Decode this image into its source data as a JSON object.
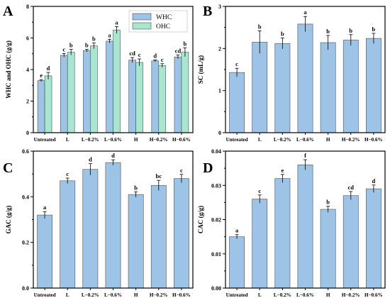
{
  "figure": {
    "colors": {
      "whc": "#9dc3e6",
      "ohc": "#a8e6cf",
      "bar": "#9dc3e6",
      "edge": "#505050"
    },
    "panels": [
      {
        "label": "A"
      },
      {
        "label": "B"
      },
      {
        "label": "C"
      },
      {
        "label": "D"
      }
    ]
  },
  "chart_data": [
    {
      "type": "bar",
      "panel": "A",
      "categories": [
        "Untreated",
        "L",
        "L−0.2%",
        "L−0.6%",
        "H",
        "H−0.2%",
        "H−0.6%"
      ],
      "series": [
        {
          "name": "WHC",
          "values": [
            3.3,
            4.9,
            5.2,
            5.8,
            4.6,
            4.55,
            4.8
          ],
          "errors": [
            0.06,
            0.12,
            0.08,
            0.12,
            0.16,
            0.06,
            0.12
          ],
          "letters": [
            "e",
            "c",
            "b",
            "a",
            "cd",
            "d",
            "cd"
          ]
        },
        {
          "name": "OHC",
          "values": [
            3.6,
            5.1,
            5.5,
            6.5,
            4.45,
            4.25,
            5.1
          ],
          "errors": [
            0.22,
            0.18,
            0.18,
            0.22,
            0.22,
            0.12,
            0.28
          ],
          "letters": [
            "d",
            "b",
            "b",
            "a",
            "c",
            "c",
            "b"
          ]
        }
      ],
      "ylabel": "WHC and OHC (g/g)",
      "ylim": [
        0,
        8
      ],
      "yticks": [
        "0",
        "2",
        "4",
        "6",
        "8"
      ],
      "legend": "top-right"
    },
    {
      "type": "bar",
      "panel": "B",
      "categories": [
        "Untreated",
        "L",
        "L−0.2%",
        "L−0.6%",
        "H",
        "H−0.2%",
        "H−0.6%"
      ],
      "values": [
        1.43,
        2.15,
        2.12,
        2.58,
        2.14,
        2.2,
        2.24
      ],
      "errors": [
        0.1,
        0.27,
        0.13,
        0.18,
        0.17,
        0.13,
        0.12
      ],
      "letters": [
        "c",
        "b",
        "b",
        "a",
        "b",
        "b",
        "b"
      ],
      "ylabel": "SC (mL/g)",
      "ylim": [
        0,
        3
      ],
      "yticks": [
        "0",
        "1",
        "2",
        "3"
      ]
    },
    {
      "type": "bar",
      "panel": "C",
      "categories": [
        "Untreated",
        "L",
        "L−0.2%",
        "L−0.6%",
        "H",
        "H−0.2%",
        "H−0.6%"
      ],
      "values": [
        0.32,
        0.47,
        0.52,
        0.55,
        0.41,
        0.45,
        0.48
      ],
      "errors": [
        0.015,
        0.012,
        0.025,
        0.012,
        0.012,
        0.022,
        0.018
      ],
      "letters": [
        "a",
        "c",
        "d",
        "d",
        "b",
        "bc",
        "c"
      ],
      "ylabel": "GAC (g/g)",
      "ylim": [
        0,
        0.6
      ],
      "yticks": [
        "0.0",
        "0.2",
        "0.4",
        "0.6"
      ]
    },
    {
      "type": "bar",
      "panel": "D",
      "categories": [
        "Untreated",
        "L",
        "L−0.2%",
        "L−0.6%",
        "H",
        "H−0.2%",
        "H−0.6%"
      ],
      "values": [
        0.015,
        0.026,
        0.032,
        0.036,
        0.023,
        0.027,
        0.029
      ],
      "errors": [
        0.0006,
        0.0012,
        0.0012,
        0.0015,
        0.0009,
        0.0012,
        0.0011
      ],
      "letters": [
        "a",
        "c",
        "e",
        "f",
        "b",
        "cd",
        "d"
      ],
      "ylabel": "CAC (g/g)",
      "ylim": [
        0,
        0.04
      ],
      "yticks": [
        "0.00",
        "0.01",
        "0.02",
        "0.03",
        "0.04"
      ]
    }
  ]
}
